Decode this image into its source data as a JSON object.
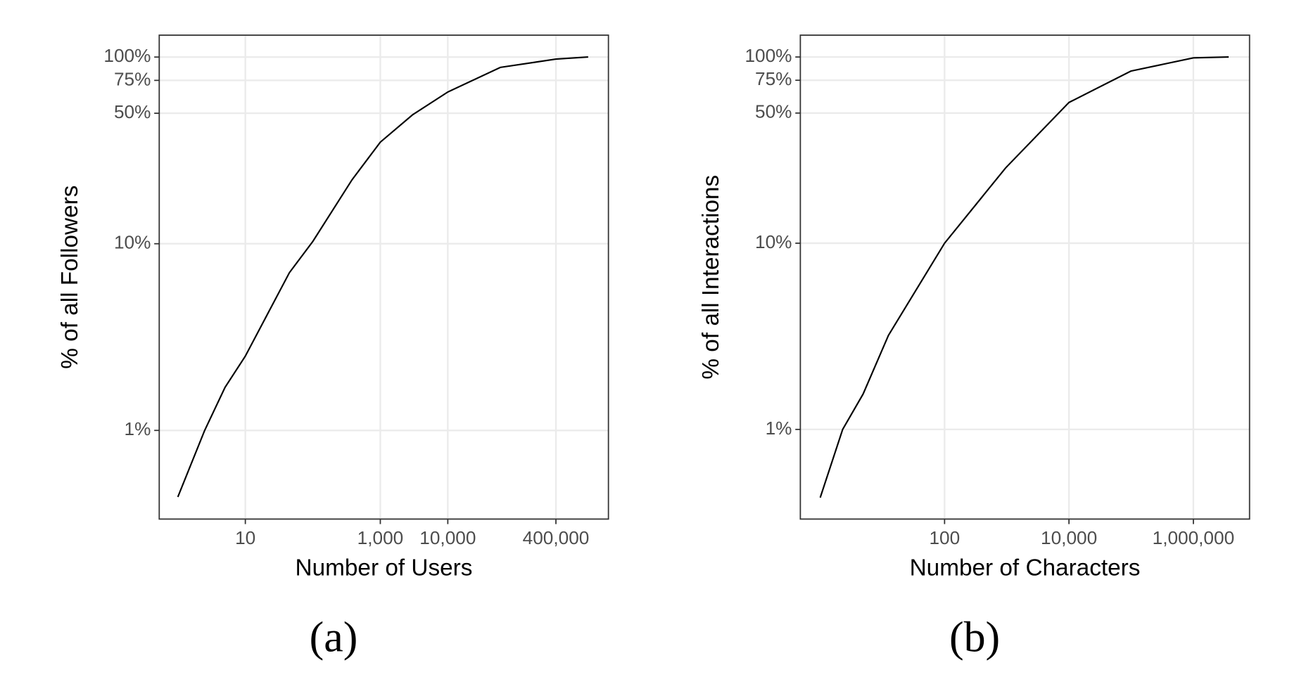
{
  "chart_data": [
    {
      "type": "line",
      "caption": "(a)",
      "xlabel": "Number of Users",
      "ylabel": "% of all Followers",
      "xscale": "log",
      "yscale": "log",
      "grid": true,
      "xlim": [
        0.53,
        2400000
      ],
      "ylim": [
        0.335,
        131
      ],
      "xticks": [
        10,
        {
          "value": 1000,
          "label": "1,000"
        },
        {
          "value": 10000,
          "label": "10,000"
        },
        {
          "value": 400000,
          "label": "400,000"
        }
      ],
      "yticks": [
        {
          "value": 1,
          "label": "1%"
        },
        {
          "value": 10,
          "label": "10%"
        },
        {
          "value": 50,
          "label": "50%"
        },
        {
          "value": 75,
          "label": "75%"
        },
        {
          "value": 100,
          "label": "100%"
        }
      ],
      "series": [
        {
          "color": "#000000",
          "x": [
            1,
            2.5,
            5,
            10,
            45,
            100,
            380,
            1000,
            3000,
            10000,
            60000,
            400000,
            1200000
          ],
          "values": [
            0.44,
            1,
            1.7,
            2.5,
            7,
            10.3,
            22,
            35,
            49,
            65,
            88,
            97.5,
            100
          ]
        }
      ]
    },
    {
      "type": "line",
      "caption": "(b)",
      "xlabel": "Number of Characters",
      "ylabel": "% of all Interactions",
      "xscale": "log",
      "yscale": "log",
      "grid": true,
      "xlim": [
        0.48,
        8000000
      ],
      "ylim": [
        0.33,
        131
      ],
      "xticks": [
        100,
        {
          "value": 10000,
          "label": "10,000"
        },
        {
          "value": 1000000,
          "label": "1,000,000"
        }
      ],
      "yticks": [
        {
          "value": 1,
          "label": "1%"
        },
        {
          "value": 10,
          "label": "10%"
        },
        {
          "value": 50,
          "label": "50%"
        },
        {
          "value": 75,
          "label": "75%"
        },
        {
          "value": 100,
          "label": "100%"
        }
      ],
      "series": [
        {
          "color": "#000000",
          "x": [
            1,
            2.3,
            4.9,
            12.5,
            100,
            960,
            10000,
            99000,
            1000000,
            3700000
          ],
          "values": [
            0.43,
            1,
            1.55,
            3.2,
            10,
            25.4,
            57,
            84,
            99,
            100
          ]
        }
      ]
    }
  ]
}
